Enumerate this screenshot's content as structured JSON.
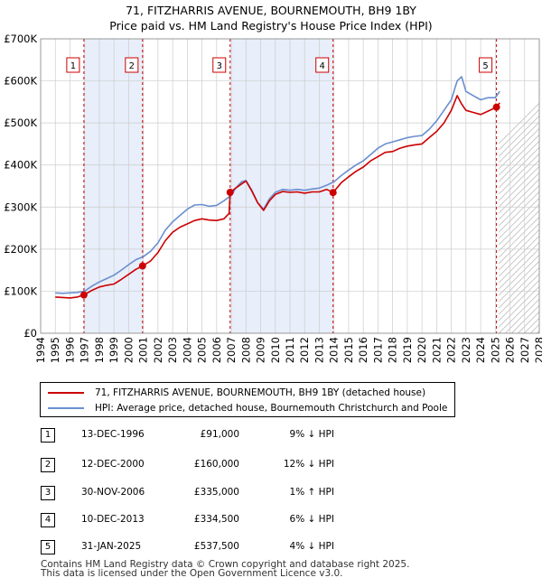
{
  "title": {
    "line1": "71, FITZHARRIS AVENUE, BOURNEMOUTH, BH9 1BY",
    "line2": "Price paid vs. HM Land Registry's House Price Index (HPI)"
  },
  "colors": {
    "property": "#cc0000",
    "hpi": "#6a8fcf",
    "shade": "#e8eefa",
    "grid": "#cccccc",
    "marker_line": "#cc0000",
    "future_hatch": "#aaaaaa"
  },
  "legend": {
    "property_label": "71, FITZHARRIS AVENUE, BOURNEMOUTH, BH9 1BY (detached house)",
    "hpi_label": "HPI: Average price, detached house, Bournemouth Christchurch and Poole"
  },
  "transactions": [
    {
      "num": "1",
      "date": "13-DEC-1996",
      "price": "£91,000",
      "diff": "9% ↓ HPI"
    },
    {
      "num": "2",
      "date": "12-DEC-2000",
      "price": "£160,000",
      "diff": "12% ↓ HPI"
    },
    {
      "num": "3",
      "date": "30-NOV-2006",
      "price": "£335,000",
      "diff": "1% ↑ HPI"
    },
    {
      "num": "4",
      "date": "10-DEC-2013",
      "price": "£334,500",
      "diff": "6% ↓ HPI"
    },
    {
      "num": "5",
      "date": "31-JAN-2025",
      "price": "£537,500",
      "diff": "4% ↓ HPI"
    }
  ],
  "footer": {
    "line1": "Contains HM Land Registry data © Crown copyright and database right 2025.",
    "line2": "This data is licensed under the Open Government Licence v3.0."
  },
  "chart_data": {
    "type": "line",
    "title": "Price paid vs. HM Land Registry's House Price Index (HPI)",
    "xlabel": "",
    "ylabel": "",
    "xlim": [
      1994,
      2028
    ],
    "ylim": [
      0,
      700000
    ],
    "y_ticks": [
      0,
      100000,
      200000,
      300000,
      400000,
      500000,
      600000,
      700000
    ],
    "y_tick_labels": [
      "£0",
      "£100K",
      "£200K",
      "£300K",
      "£400K",
      "£500K",
      "£600K",
      "£700K"
    ],
    "x_ticks": [
      1994,
      1995,
      1996,
      1997,
      1998,
      1999,
      2000,
      2001,
      2002,
      2003,
      2004,
      2005,
      2006,
      2007,
      2008,
      2009,
      2010,
      2011,
      2012,
      2013,
      2014,
      2015,
      2016,
      2017,
      2018,
      2019,
      2020,
      2021,
      2022,
      2023,
      2024,
      2025,
      2026,
      2027,
      2028
    ],
    "grid": true,
    "shaded_periods": [
      [
        1996.95,
        2000.95
      ],
      [
        2006.92,
        2013.94
      ]
    ],
    "future_from": 2025.25,
    "sales": [
      {
        "label": "1",
        "x": 1996.95,
        "y": 91000
      },
      {
        "label": "2",
        "x": 2000.95,
        "y": 160000
      },
      {
        "label": "3",
        "x": 2006.92,
        "y": 335000
      },
      {
        "label": "4",
        "x": 2013.94,
        "y": 334500
      },
      {
        "label": "5",
        "x": 2025.08,
        "y": 537500
      }
    ],
    "series": [
      {
        "name": "71, FITZHARRIS AVENUE, BOURNEMOUTH, BH9 1BY (detached house)",
        "x": [
          1995.0,
          1995.5,
          1996.0,
          1996.5,
          1996.95,
          1997.5,
          1998.0,
          1998.5,
          1999.0,
          1999.5,
          2000.0,
          2000.5,
          2000.95,
          2001.5,
          2002.0,
          2002.5,
          2003.0,
          2003.5,
          2004.0,
          2004.5,
          2005.0,
          2005.5,
          2006.0,
          2006.5,
          2006.85,
          2006.92,
          2007.3,
          2007.7,
          2008.0,
          2008.4,
          2008.8,
          2009.2,
          2009.6,
          2010.0,
          2010.5,
          2011.0,
          2011.5,
          2012.0,
          2012.5,
          2013.0,
          2013.5,
          2013.94,
          2014.5,
          2015.0,
          2015.5,
          2016.0,
          2016.5,
          2017.0,
          2017.5,
          2018.0,
          2018.5,
          2019.0,
          2019.5,
          2020.0,
          2020.5,
          2021.0,
          2021.5,
          2022.0,
          2022.4,
          2022.7,
          2023.0,
          2023.5,
          2024.0,
          2024.5,
          2025.08,
          2025.3
        ],
        "y": [
          86000,
          85000,
          84000,
          86000,
          91000,
          102000,
          110000,
          114000,
          117000,
          128000,
          140000,
          152000,
          160000,
          172000,
          192000,
          220000,
          240000,
          252000,
          260000,
          268000,
          272000,
          269000,
          268000,
          272000,
          285000,
          335000,
          345000,
          355000,
          362000,
          338000,
          310000,
          292000,
          315000,
          330000,
          337000,
          335000,
          336000,
          333000,
          336000,
          336000,
          342000,
          334500,
          358000,
          372000,
          385000,
          395000,
          410000,
          420000,
          430000,
          432000,
          440000,
          445000,
          448000,
          450000,
          465000,
          480000,
          500000,
          530000,
          565000,
          545000,
          530000,
          525000,
          520000,
          528000,
          537500,
          548000
        ]
      },
      {
        "name": "HPI: Average price, detached house, Bournemouth Christchurch and Poole",
        "x": [
          1995.0,
          1995.5,
          1996.0,
          1996.5,
          1997.0,
          1997.5,
          1998.0,
          1998.5,
          1999.0,
          1999.5,
          2000.0,
          2000.5,
          2001.0,
          2001.5,
          2002.0,
          2002.5,
          2003.0,
          2003.5,
          2004.0,
          2004.5,
          2005.0,
          2005.5,
          2006.0,
          2006.5,
          2007.0,
          2007.3,
          2007.7,
          2008.0,
          2008.4,
          2008.8,
          2009.2,
          2009.6,
          2010.0,
          2010.5,
          2011.0,
          2011.5,
          2012.0,
          2012.5,
          2013.0,
          2013.5,
          2014.0,
          2014.5,
          2015.0,
          2015.5,
          2016.0,
          2016.5,
          2017.0,
          2017.5,
          2018.0,
          2018.5,
          2019.0,
          2019.5,
          2020.0,
          2020.5,
          2021.0,
          2021.5,
          2022.0,
          2022.4,
          2022.7,
          2023.0,
          2023.5,
          2024.0,
          2024.5,
          2025.0,
          2025.3
        ],
        "y": [
          96000,
          95000,
          96000,
          97000,
          100000,
          112000,
          122000,
          130000,
          138000,
          150000,
          163000,
          175000,
          182000,
          195000,
          215000,
          245000,
          265000,
          280000,
          295000,
          305000,
          306000,
          302000,
          304000,
          315000,
          328000,
          345000,
          360000,
          363000,
          340000,
          310000,
          295000,
          320000,
          335000,
          342000,
          340000,
          342000,
          340000,
          343000,
          345000,
          352000,
          360000,
          375000,
          388000,
          400000,
          410000,
          425000,
          440000,
          450000,
          455000,
          460000,
          465000,
          468000,
          470000,
          485000,
          505000,
          530000,
          555000,
          600000,
          610000,
          575000,
          565000,
          555000,
          560000,
          560000,
          575000
        ]
      }
    ]
  }
}
